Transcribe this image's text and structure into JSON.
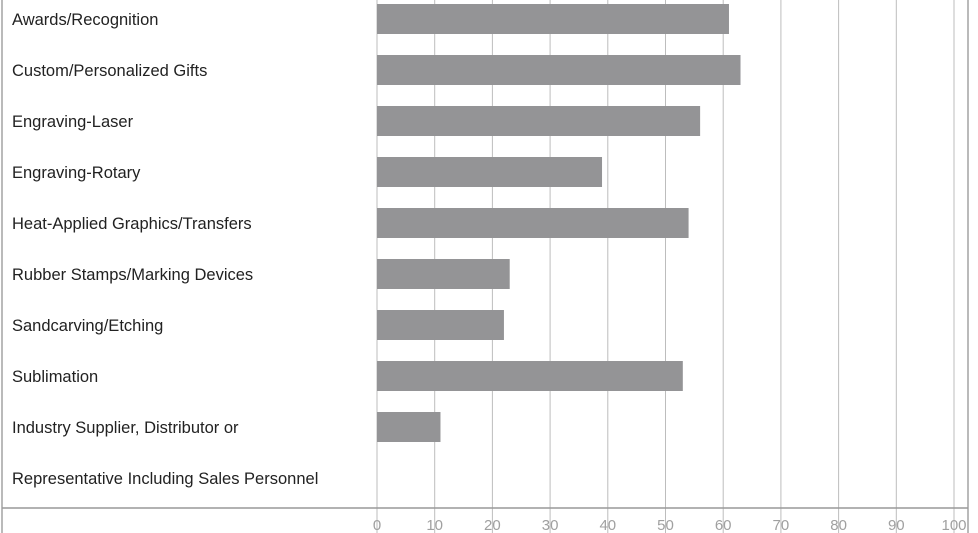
{
  "chart_data": {
    "type": "bar",
    "orientation": "horizontal",
    "categories": [
      "Awards/Recognition",
      "Custom/Personalized Gifts",
      "Engraving-Laser",
      "Engraving-Rotary",
      "Heat-Applied Graphics/Transfers",
      "Rubber Stamps/Marking Devices",
      "Sandcarving/Etching",
      "Sublimation",
      "Industry Supplier, Distributor or",
      "Representative Including Sales Personnel"
    ],
    "values": [
      61,
      63,
      56,
      39,
      54,
      23,
      22,
      53,
      11,
      null
    ],
    "xlim": [
      0,
      100
    ],
    "xticks": [
      0,
      10,
      20,
      30,
      40,
      50,
      60,
      70,
      80,
      90,
      100
    ],
    "grid": true,
    "title": "",
    "xlabel": "",
    "ylabel": "",
    "colors": {
      "bar": "#949496",
      "grid": "#bdbdbd",
      "tick_text": "#a0a0a0",
      "label_text": "#222222"
    }
  }
}
